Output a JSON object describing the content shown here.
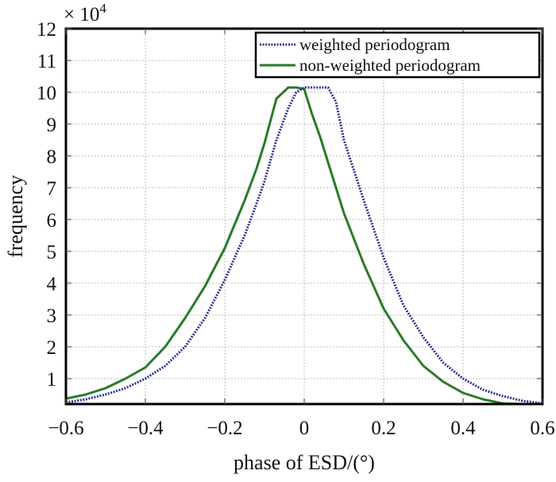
{
  "chart_data": {
    "type": "line",
    "title": "",
    "xlabel": "phase of ESD/(°)",
    "ylabel": "frequency",
    "y_multiplier_label": "× 10",
    "y_multiplier_exponent": "4",
    "xlim": [
      -0.6,
      0.6
    ],
    "ylim": [
      0.2,
      12
    ],
    "grid": true,
    "legend_position": "top-right",
    "x_ticks": [
      -0.6,
      -0.4,
      -0.2,
      0,
      0.2,
      0.4,
      0.6
    ],
    "x_tick_labels": [
      "−0.6",
      "−0.4",
      "−0.2",
      "0",
      "0.2",
      "0.4",
      "0.6"
    ],
    "y_ticks": [
      1,
      2,
      3,
      4,
      5,
      6,
      7,
      8,
      9,
      10,
      11,
      12
    ],
    "y_tick_labels": [
      "1",
      "2",
      "3",
      "4",
      "5",
      "6",
      "7",
      "8",
      "9",
      "10",
      "11",
      "12"
    ],
    "x": [
      -0.6,
      -0.55,
      -0.5,
      -0.45,
      -0.4,
      -0.35,
      -0.3,
      -0.25,
      -0.2,
      -0.15,
      -0.12,
      -0.1,
      -0.07,
      -0.04,
      -0.02,
      0.0,
      0.02,
      0.04,
      0.06,
      0.08,
      0.1,
      0.15,
      0.2,
      0.25,
      0.3,
      0.35,
      0.4,
      0.45,
      0.5,
      0.55,
      0.6
    ],
    "series": [
      {
        "name": "weighted periodogram",
        "color": "#2e2f8c",
        "style": "dotted",
        "values": [
          0.25,
          0.35,
          0.5,
          0.7,
          1.0,
          1.4,
          2.0,
          2.9,
          4.1,
          5.5,
          6.5,
          7.2,
          8.5,
          9.5,
          10.0,
          10.15,
          10.15,
          10.15,
          10.15,
          9.7,
          8.5,
          6.6,
          4.8,
          3.3,
          2.3,
          1.5,
          1.0,
          0.65,
          0.45,
          0.3,
          0.22
        ]
      },
      {
        "name": "non-weighted periodogram",
        "color": "#2a7a2a",
        "style": "solid",
        "values": [
          0.37,
          0.5,
          0.7,
          1.0,
          1.35,
          2.0,
          2.9,
          3.9,
          5.1,
          6.6,
          7.6,
          8.4,
          9.8,
          10.15,
          10.15,
          10.1,
          9.3,
          8.6,
          7.8,
          7.0,
          6.2,
          4.6,
          3.2,
          2.2,
          1.4,
          0.9,
          0.55,
          0.35,
          0.22,
          0.2,
          0.2
        ]
      }
    ]
  }
}
